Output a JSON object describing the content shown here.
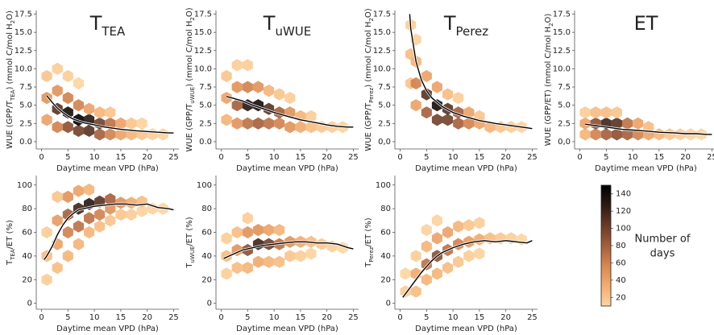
{
  "chart_data": [
    {
      "type": "hexbin",
      "title": [
        "T",
        "TEA"
      ],
      "xlabel": "Daytime mean VPD (hPa)",
      "ylabel": [
        "WUE (GPP/T",
        "TEA",
        ") (mmol C/mol H",
        "2",
        "O)"
      ],
      "xlim": [
        -1,
        26
      ],
      "ylim": [
        -1,
        18
      ],
      "xticks": [
        0,
        5,
        10,
        15,
        20,
        25
      ],
      "yticks": [
        {
          "value": 0,
          "label": "0.0"
        },
        2.5,
        {
          "value": 5,
          "label": "5.0"
        },
        7.5,
        {
          "value": 10,
          "label": "10.0"
        },
        12.5,
        {
          "value": 15,
          "label": "15.0"
        },
        17.5
      ],
      "density": {
        "x": [
          1,
          1,
          1,
          3,
          3,
          3,
          3,
          5,
          5,
          5,
          5,
          7,
          7,
          7,
          7,
          9,
          9,
          9,
          11,
          11,
          11,
          13,
          13,
          13,
          15,
          15,
          17,
          17,
          19,
          19,
          21,
          23
        ],
        "y": [
          3,
          6,
          9,
          2,
          4.5,
          7,
          10,
          2,
          4,
          6,
          9,
          1.5,
          3,
          5,
          8,
          1.5,
          3,
          4.5,
          1,
          2.5,
          4,
          1,
          2.5,
          4,
          1,
          2.5,
          1,
          2.5,
          1,
          2.5,
          1,
          1
        ],
        "count": [
          40,
          50,
          20,
          60,
          110,
          50,
          15,
          90,
          140,
          60,
          15,
          100,
          150,
          60,
          10,
          110,
          130,
          40,
          80,
          100,
          30,
          60,
          70,
          20,
          40,
          40,
          30,
          20,
          20,
          12,
          15,
          12
        ]
      },
      "line": {
        "color": "#000000",
        "x": [
          1,
          2,
          3,
          4,
          5,
          6,
          8,
          10,
          12,
          15,
          18,
          20,
          22,
          24,
          25
        ],
        "y": [
          6.3,
          5.4,
          4.6,
          4.0,
          3.5,
          3.1,
          2.6,
          2.3,
          2.0,
          1.7,
          1.5,
          1.4,
          1.3,
          1.2,
          1.2
        ]
      }
    },
    {
      "type": "hexbin",
      "title": [
        "T",
        "uWUE"
      ],
      "xlabel": "Daytime mean VPD (hPa)",
      "ylabel": [
        "WUE (GPP/T",
        "uWUE",
        ") (mmol C/mol H",
        "2",
        "O)"
      ],
      "xlim": [
        -1,
        26
      ],
      "ylim": [
        -1,
        18
      ],
      "xticks": [
        0,
        5,
        10,
        15,
        20,
        25
      ],
      "yticks": [
        {
          "value": 0,
          "label": "0.0"
        },
        2.5,
        {
          "value": 5,
          "label": "5.0"
        },
        7.5,
        {
          "value": 10,
          "label": "10.0"
        },
        12.5,
        {
          "value": 15,
          "label": "15.0"
        },
        17.5
      ],
      "density": {
        "x": [
          1,
          1,
          1,
          3,
          3,
          3,
          3,
          5,
          5,
          5,
          5,
          7,
          7,
          7,
          9,
          9,
          9,
          11,
          11,
          11,
          13,
          13,
          13,
          15,
          15,
          17,
          17,
          19,
          21,
          23
        ],
        "y": [
          3,
          6,
          9,
          2.5,
          5,
          7.5,
          10.5,
          2.5,
          5,
          7.5,
          10.5,
          2.5,
          5,
          7.5,
          2.5,
          4.5,
          7,
          2.5,
          4,
          6.5,
          2,
          4,
          6,
          2,
          3.5,
          2,
          3.5,
          2,
          2,
          2
        ],
        "count": [
          30,
          40,
          20,
          50,
          80,
          50,
          15,
          70,
          130,
          60,
          15,
          80,
          140,
          50,
          70,
          110,
          30,
          60,
          80,
          20,
          50,
          50,
          15,
          35,
          30,
          25,
          15,
          18,
          15,
          12
        ]
      },
      "line": {
        "color": "#000000",
        "x": [
          1,
          2,
          3,
          4,
          5,
          6,
          8,
          10,
          12,
          15,
          18,
          20,
          22,
          24,
          25
        ],
        "y": [
          6.2,
          6.0,
          5.8,
          5.6,
          5.3,
          5.0,
          4.5,
          4.0,
          3.6,
          3.0,
          2.6,
          2.3,
          2.1,
          2.0,
          2.0
        ]
      }
    },
    {
      "type": "hexbin",
      "title": [
        "T",
        "Perez"
      ],
      "xlabel": "Daytime mean VPD (hPa)",
      "ylabel": [
        "WUE (GPP/T",
        "Perez",
        ") (mmol C/mol H",
        "2",
        "O)"
      ],
      "xlim": [
        -1,
        26
      ],
      "ylim": [
        -1,
        18
      ],
      "xticks": [
        0,
        5,
        10,
        15,
        20,
        25
      ],
      "yticks": [
        {
          "value": 0,
          "label": "0,0"
        },
        2.5,
        {
          "value": 5,
          "label": "5.0"
        },
        7.5,
        {
          "value": 10,
          "label": "10.0"
        },
        12.5,
        {
          "value": 15,
          "label": "15.0"
        },
        17.5
      ],
      "density": {
        "x": [
          2,
          2,
          2,
          3,
          3,
          3,
          3,
          5,
          5,
          5,
          7,
          7,
          7,
          9,
          9,
          9,
          11,
          11,
          11,
          13,
          13,
          15,
          15,
          17,
          19,
          21,
          23
        ],
        "y": [
          8,
          12,
          16,
          5,
          8,
          11,
          14,
          4,
          6.5,
          9,
          3,
          5,
          7.5,
          3,
          4.5,
          6.5,
          2.5,
          4,
          6,
          2.5,
          4,
          2.5,
          3.5,
          2,
          2,
          2,
          2
        ],
        "count": [
          20,
          25,
          15,
          40,
          60,
          30,
          12,
          80,
          110,
          40,
          100,
          140,
          40,
          100,
          110,
          25,
          80,
          80,
          15,
          60,
          40,
          40,
          20,
          30,
          20,
          15,
          12
        ]
      },
      "line": {
        "color": "#000000",
        "x": [
          1.8,
          2,
          3,
          4,
          5,
          6,
          8,
          10,
          12,
          15,
          18,
          20,
          22,
          24,
          25
        ],
        "y": [
          17.5,
          15.5,
          11,
          8.5,
          7,
          6,
          4.8,
          4.0,
          3.5,
          2.9,
          2.5,
          2.3,
          2.1,
          1.9,
          1.8
        ]
      }
    },
    {
      "type": "hexbin",
      "title": [
        "ET"
      ],
      "xlabel": "Daytime mean VPD (hPa)",
      "ylabel": [
        "WUE (GPP/ET) (mmol C/mol H",
        "2",
        "O)"
      ],
      "xlim": [
        -1,
        26
      ],
      "ylim": [
        -1,
        18
      ],
      "xticks": [
        0,
        5,
        10,
        15,
        20,
        25
      ],
      "yticks": [
        {
          "value": 0,
          "label": "0,0"
        },
        2.5,
        {
          "value": 5,
          "label": "5.0"
        },
        7.5,
        {
          "value": 10,
          "label": "10.0"
        },
        12.5,
        {
          "value": 15,
          "label": "15.0"
        },
        17.5
      ],
      "density": {
        "x": [
          1,
          1,
          1,
          3,
          3,
          3,
          5,
          5,
          5,
          7,
          7,
          7,
          9,
          9,
          11,
          11,
          13,
          13,
          15,
          17,
          19,
          21,
          23
        ],
        "y": [
          1,
          2.5,
          4,
          1,
          2.5,
          4,
          1,
          2.5,
          4,
          1,
          2.5,
          4,
          1,
          2.5,
          1,
          2.5,
          1,
          2,
          1,
          1,
          1,
          1,
          1
        ],
        "count": [
          30,
          40,
          15,
          60,
          90,
          25,
          80,
          120,
          25,
          90,
          110,
          20,
          80,
          70,
          60,
          40,
          40,
          25,
          30,
          20,
          15,
          12,
          10
        ]
      },
      "line": {
        "color": "#000000",
        "x": [
          1,
          2,
          3,
          4,
          5,
          6,
          8,
          10,
          12,
          15,
          18,
          20,
          22,
          24,
          25
        ],
        "y": [
          2.4,
          2.3,
          2.2,
          2.1,
          2.0,
          1.9,
          1.7,
          1.6,
          1.5,
          1.3,
          1.2,
          1.1,
          1.1,
          1.0,
          1.0
        ]
      }
    },
    {
      "type": "hexbin",
      "xlabel": "Daytime mean VPD (hPa)",
      "ylabel": [
        "T",
        "TEA",
        "/ET (%)"
      ],
      "xlim": [
        -1,
        26
      ],
      "ylim": [
        -5,
        108
      ],
      "xticks": [
        0,
        5,
        10,
        15,
        20,
        25
      ],
      "yticks": [
        0,
        20,
        40,
        60,
        80,
        100
      ],
      "density": {
        "x": [
          1,
          1,
          1,
          3,
          3,
          3,
          3,
          5,
          5,
          5,
          5,
          7,
          7,
          7,
          7,
          9,
          9,
          9,
          9,
          11,
          11,
          11,
          13,
          13,
          13,
          15,
          15,
          17,
          17,
          19,
          19,
          21,
          23
        ],
        "y": [
          20,
          40,
          60,
          30,
          50,
          70,
          90,
          40,
          60,
          75,
          90,
          50,
          65,
          80,
          95,
          60,
          72,
          84,
          96,
          65,
          75,
          86,
          70,
          80,
          88,
          75,
          85,
          75,
          85,
          78,
          86,
          80,
          80
        ],
        "count": [
          15,
          25,
          15,
          25,
          40,
          45,
          20,
          30,
          60,
          80,
          50,
          30,
          70,
          120,
          40,
          30,
          70,
          130,
          30,
          25,
          60,
          110,
          20,
          50,
          80,
          20,
          50,
          15,
          35,
          12,
          25,
          12,
          10
        ]
      },
      "line": {
        "color": "#000000",
        "x": [
          0.5,
          1,
          2,
          3,
          4,
          5,
          6,
          7,
          8,
          10,
          12,
          14,
          16,
          18,
          20,
          22,
          24,
          25
        ],
        "y": [
          37,
          40,
          48,
          58,
          66,
          72,
          76,
          79,
          80,
          82,
          83,
          84,
          84,
          83,
          84,
          81,
          80,
          79
        ]
      }
    },
    {
      "type": "hexbin",
      "xlabel": "Daytime mean VPD (hPa)",
      "ylabel": [
        "T",
        "uWUE",
        "/ET (%)"
      ],
      "xlim": [
        -1,
        26
      ],
      "ylim": [
        -5,
        108
      ],
      "xticks": [
        0,
        5,
        10,
        15,
        20,
        25
      ],
      "yticks": [
        0,
        20,
        40,
        60,
        80,
        100
      ],
      "density": {
        "x": [
          1,
          1,
          1,
          3,
          3,
          3,
          5,
          5,
          5,
          5,
          7,
          7,
          7,
          9,
          9,
          9,
          11,
          11,
          11,
          13,
          13,
          15,
          15,
          17,
          17,
          19,
          21,
          23
        ],
        "y": [
          25,
          40,
          55,
          30,
          45,
          60,
          30,
          45,
          60,
          72,
          35,
          50,
          62,
          35,
          50,
          62,
          35,
          50,
          62,
          40,
          52,
          40,
          52,
          42,
          52,
          50,
          48,
          47
        ],
        "count": [
          15,
          25,
          15,
          25,
          50,
          25,
          30,
          90,
          50,
          15,
          35,
          120,
          50,
          30,
          100,
          40,
          25,
          70,
          30,
          20,
          50,
          15,
          35,
          12,
          25,
          18,
          14,
          10
        ]
      },
      "line": {
        "color": "#000000",
        "x": [
          0.5,
          1,
          2,
          3,
          4,
          5,
          6,
          7,
          8,
          10,
          12,
          14,
          16,
          18,
          20,
          22,
          24,
          25
        ],
        "y": [
          38,
          39,
          41,
          43,
          45,
          46,
          47,
          48,
          49,
          50,
          51,
          52,
          52,
          51,
          51,
          50,
          47,
          46
        ]
      }
    },
    {
      "type": "hexbin",
      "xlabel": "Daytime mean VPD (hPa)",
      "ylabel": [
        "T",
        "Perez",
        "/ET (%)"
      ],
      "xlim": [
        -1,
        26
      ],
      "ylim": [
        -5,
        108
      ],
      "xticks": [
        0,
        5,
        10,
        15,
        20,
        25
      ],
      "yticks": [
        0,
        20,
        40,
        60,
        80,
        100
      ],
      "density": {
        "x": [
          1,
          1,
          3,
          3,
          3,
          5,
          5,
          5,
          5,
          7,
          7,
          7,
          7,
          9,
          9,
          9,
          11,
          11,
          11,
          13,
          13,
          13,
          15,
          15,
          15,
          17,
          19,
          21,
          23
        ],
        "y": [
          10,
          25,
          10,
          25,
          40,
          20,
          33,
          48,
          62,
          25,
          40,
          55,
          70,
          30,
          45,
          60,
          35,
          50,
          65,
          40,
          52,
          66,
          42,
          54,
          68,
          55,
          55,
          55,
          54
        ],
        "count": [
          15,
          10,
          25,
          35,
          15,
          30,
          70,
          30,
          12,
          30,
          90,
          40,
          12,
          25,
          70,
          40,
          20,
          60,
          30,
          15,
          45,
          20,
          12,
          35,
          15,
          25,
          18,
          14,
          10
        ]
      },
      "line": {
        "color": "#000000",
        "x": [
          0.5,
          1,
          2,
          3,
          4,
          5,
          6,
          7,
          8,
          10,
          12,
          14,
          16,
          18,
          20,
          22,
          24,
          25
        ],
        "y": [
          5,
          8,
          14,
          20,
          26,
          31,
          36,
          40,
          43,
          47,
          50,
          52,
          53,
          52,
          53,
          52,
          51,
          53
        ]
      }
    },
    {
      "type": "colorbar",
      "label": [
        "Number of",
        "days"
      ],
      "clim": [
        10,
        150
      ],
      "ticks": [
        20,
        40,
        60,
        80,
        100,
        120,
        140
      ],
      "cmap": [
        "#fdd5a0",
        "#f4ac6e",
        "#d9874f",
        "#a55e3a",
        "#6a3b26",
        "#2c1a12",
        "#000000"
      ]
    }
  ]
}
